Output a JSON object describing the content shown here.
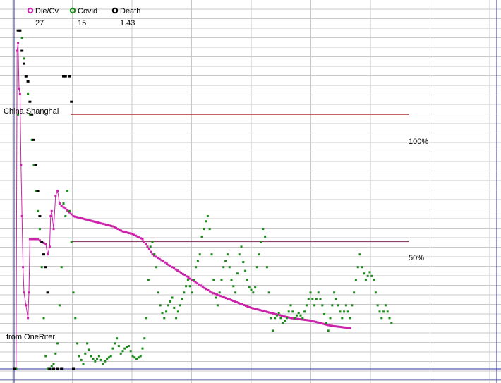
{
  "chart_data": {
    "type": "line",
    "ylim": [
      0,
      135
    ],
    "grid": true,
    "legend_position": "top-left",
    "legend": [
      {
        "name": "Die/Cv",
        "value": "27",
        "color": "#cc22aa",
        "marker": "circle"
      },
      {
        "name": "Covid",
        "value": "15",
        "color": "#1a8a1a",
        "marker": "circle"
      },
      {
        "name": "Death",
        "value": "1.43",
        "color": "#000000",
        "marker": "circle"
      }
    ],
    "annotations": [
      {
        "text": "China.Shanghai"
      },
      {
        "text": "from.OneRiter"
      },
      {
        "text": "100%"
      },
      {
        "text": "50%"
      }
    ],
    "reference_lines": [
      {
        "label": "100%",
        "value": 100,
        "color": "#b03030",
        "x_range": [
          25,
          170
        ]
      },
      {
        "label": "50%",
        "value": 50,
        "color": "#7a2a5a",
        "x_range": [
          25,
          170
        ]
      }
    ],
    "series": [
      {
        "name": "Die/Cv",
        "color": "#cc22aa",
        "points": [
          [
            0,
            0
          ],
          [
            1,
            0
          ],
          [
            1.5,
            125
          ],
          [
            2,
            128
          ],
          [
            2.5,
            110
          ],
          [
            3,
            108
          ],
          [
            3.5,
            80
          ],
          [
            4,
            60
          ],
          [
            4.5,
            40
          ],
          [
            5,
            30
          ],
          [
            6,
            25
          ],
          [
            7,
            20
          ],
          [
            7.5,
            30
          ],
          [
            8,
            51
          ],
          [
            9,
            51
          ],
          [
            10,
            51
          ],
          [
            12,
            51
          ],
          [
            14,
            50
          ],
          [
            16,
            49
          ],
          [
            17,
            45
          ],
          [
            18,
            48
          ],
          [
            18.5,
            60
          ],
          [
            19,
            62
          ],
          [
            20,
            55
          ],
          [
            21,
            68
          ],
          [
            22,
            70
          ],
          [
            23,
            65
          ],
          [
            24,
            64
          ],
          [
            26,
            63
          ],
          [
            30,
            60
          ],
          [
            35,
            59
          ],
          [
            40,
            58
          ],
          [
            45,
            57
          ],
          [
            50,
            56
          ],
          [
            55,
            54
          ],
          [
            60,
            53
          ],
          [
            65,
            51
          ],
          [
            70,
            45
          ],
          [
            80,
            40
          ],
          [
            90,
            35
          ],
          [
            100,
            30
          ],
          [
            110,
            27
          ],
          [
            120,
            24
          ],
          [
            130,
            22
          ],
          [
            140,
            20
          ],
          [
            150,
            19
          ],
          [
            160,
            17
          ],
          [
            170,
            16
          ]
        ]
      },
      {
        "name": "Covid",
        "color": "#1a8a1a",
        "points": [
          [
            1,
            0
          ],
          [
            2,
            100
          ],
          [
            3,
            133
          ],
          [
            4,
            130
          ],
          [
            5,
            122
          ],
          [
            6,
            115
          ],
          [
            7,
            108
          ],
          [
            8,
            100
          ],
          [
            9,
            90
          ],
          [
            10,
            80
          ],
          [
            11,
            70
          ],
          [
            12,
            62
          ],
          [
            13,
            55
          ],
          [
            14,
            40
          ],
          [
            15,
            20
          ],
          [
            16,
            5
          ],
          [
            17,
            0
          ],
          [
            18,
            0
          ],
          [
            20,
            2
          ],
          [
            22,
            10
          ],
          [
            24,
            40
          ],
          [
            25,
            65
          ],
          [
            26,
            60
          ],
          [
            27,
            70
          ],
          [
            28,
            62
          ],
          [
            29,
            50
          ],
          [
            30,
            30
          ],
          [
            31,
            20
          ],
          [
            32,
            10
          ],
          [
            33,
            5
          ],
          [
            35,
            2
          ],
          [
            37,
            10
          ],
          [
            39,
            5
          ],
          [
            41,
            3
          ],
          [
            43,
            5
          ],
          [
            45,
            2
          ],
          [
            47,
            4
          ],
          [
            49,
            5
          ],
          [
            50,
            8
          ],
          [
            52,
            12
          ],
          [
            54,
            6
          ],
          [
            56,
            8
          ],
          [
            58,
            9
          ],
          [
            60,
            5
          ],
          [
            62,
            4
          ],
          [
            64,
            5
          ],
          [
            65,
            8
          ],
          [
            66,
            12
          ],
          [
            67,
            20
          ],
          [
            68,
            35
          ],
          [
            69,
            48
          ],
          [
            70,
            50
          ],
          [
            71,
            45
          ],
          [
            72,
            40
          ],
          [
            73,
            30
          ],
          [
            74,
            25
          ],
          [
            75,
            22
          ],
          [
            76,
            20
          ],
          [
            78,
            25
          ],
          [
            80,
            28
          ],
          [
            82,
            20
          ],
          [
            84,
            25
          ],
          [
            86,
            30
          ],
          [
            88,
            35
          ],
          [
            90,
            30
          ],
          [
            92,
            40
          ],
          [
            94,
            45
          ],
          [
            95,
            52
          ],
          [
            96,
            55
          ],
          [
            97,
            58
          ],
          [
            98,
            60
          ],
          [
            99,
            55
          ],
          [
            100,
            45
          ],
          [
            101,
            35
          ],
          [
            102,
            28
          ],
          [
            103,
            25
          ],
          [
            104,
            30
          ],
          [
            106,
            40
          ],
          [
            108,
            45
          ],
          [
            110,
            35
          ],
          [
            112,
            30
          ],
          [
            114,
            45
          ],
          [
            115,
            48
          ],
          [
            116,
            42
          ],
          [
            118,
            35
          ],
          [
            119,
            32
          ],
          [
            121,
            30
          ],
          [
            122,
            32
          ],
          [
            123,
            40
          ],
          [
            124,
            45
          ],
          [
            125,
            50
          ],
          [
            126,
            55
          ],
          [
            127,
            52
          ],
          [
            128,
            40
          ],
          [
            129,
            30
          ],
          [
            130,
            20
          ],
          [
            131,
            15
          ],
          [
            132,
            20
          ],
          [
            134,
            22
          ],
          [
            136,
            18
          ],
          [
            138,
            20
          ],
          [
            140,
            25
          ],
          [
            142,
            20
          ],
          [
            144,
            22
          ],
          [
            146,
            20
          ],
          [
            148,
            25
          ],
          [
            150,
            30
          ],
          [
            152,
            25
          ],
          [
            154,
            30
          ],
          [
            156,
            25
          ],
          [
            158,
            18
          ],
          [
            159,
            15
          ],
          [
            160,
            20
          ],
          [
            162,
            30
          ],
          [
            164,
            25
          ],
          [
            166,
            20
          ],
          [
            168,
            25
          ],
          [
            170,
            20
          ],
          [
            172,
            30
          ],
          [
            174,
            40
          ],
          [
            175,
            45
          ],
          [
            176,
            40
          ],
          [
            178,
            35
          ],
          [
            180,
            38
          ],
          [
            182,
            35
          ],
          [
            184,
            25
          ],
          [
            186,
            20
          ],
          [
            188,
            25
          ],
          [
            190,
            20
          ],
          [
            191,
            18
          ]
        ]
      },
      {
        "name": "Death",
        "color": "#000000",
        "points": [
          [
            0,
            0
          ],
          [
            2,
            133
          ],
          [
            3,
            133
          ],
          [
            4,
            125
          ],
          [
            5,
            120
          ],
          [
            6,
            115
          ],
          [
            7,
            113
          ],
          [
            8,
            105
          ],
          [
            9,
            100
          ],
          [
            10,
            90
          ],
          [
            11,
            80
          ],
          [
            12,
            70
          ],
          [
            13,
            60
          ],
          [
            14,
            50
          ],
          [
            15,
            45
          ],
          [
            16,
            40
          ],
          [
            17,
            30
          ],
          [
            18,
            0
          ],
          [
            20,
            0
          ],
          [
            22,
            0
          ],
          [
            24,
            0
          ],
          [
            25,
            115
          ],
          [
            26,
            115
          ],
          [
            28,
            115
          ],
          [
            29,
            105
          ],
          [
            30,
            0
          ]
        ]
      }
    ]
  }
}
